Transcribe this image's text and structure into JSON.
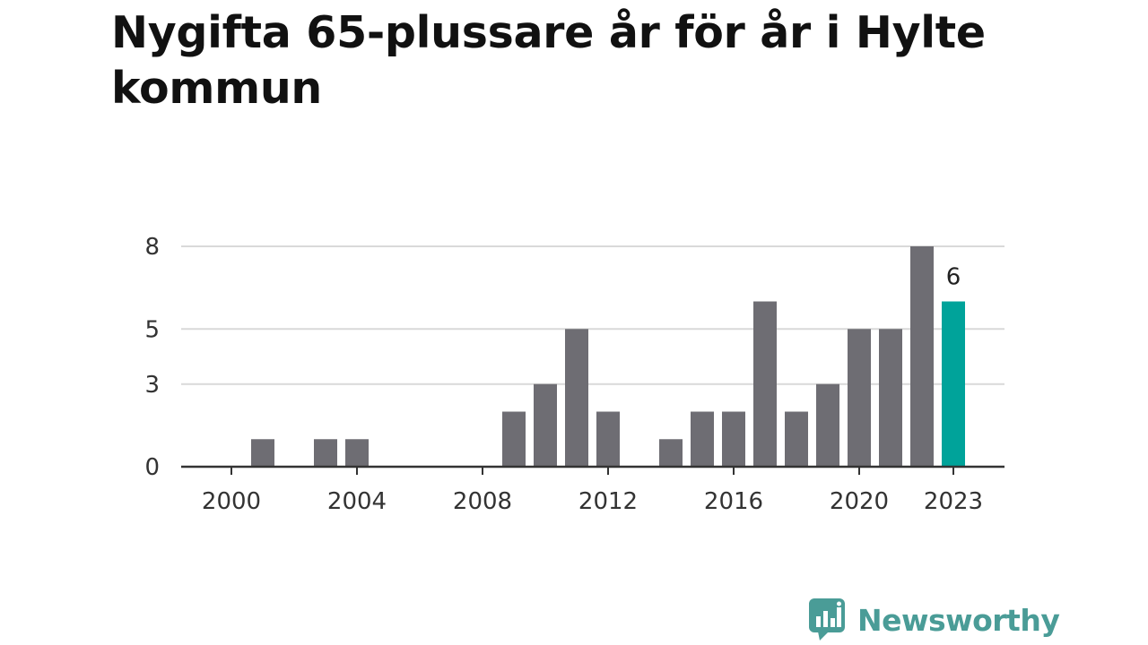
{
  "title": "Nygifta 65-plussare år för år i Hylte kommun",
  "brand": {
    "name": "Newsworthy",
    "icon": "newsworthy-logo-icon",
    "color": "#4a9c97"
  },
  "colors": {
    "bar": "#6e6d73",
    "highlight": "#00a39a",
    "grid": "#d9d9d9",
    "axis": "#333333"
  },
  "chart_data": {
    "type": "bar",
    "title": "Nygifta 65-plussare år för år i Hylte kommun",
    "xlabel": "",
    "ylabel": "",
    "categories": [
      2000,
      2001,
      2002,
      2003,
      2004,
      2005,
      2006,
      2007,
      2008,
      2009,
      2010,
      2011,
      2012,
      2013,
      2014,
      2015,
      2016,
      2017,
      2018,
      2019,
      2020,
      2021,
      2022,
      2023
    ],
    "values": [
      0,
      1,
      0,
      1,
      1,
      0,
      0,
      0,
      0,
      2,
      3,
      5,
      2,
      0,
      1,
      2,
      2,
      6,
      2,
      3,
      5,
      5,
      8,
      6
    ],
    "highlight_category": 2023,
    "ylim": [
      0,
      8
    ],
    "yticks": [
      0,
      3,
      5,
      8
    ],
    "xticks": [
      2000,
      2004,
      2008,
      2012,
      2016,
      2020,
      2023
    ],
    "data_labels": [
      {
        "category": 2023,
        "text": "6"
      }
    ],
    "grid": true,
    "legend": "none"
  }
}
